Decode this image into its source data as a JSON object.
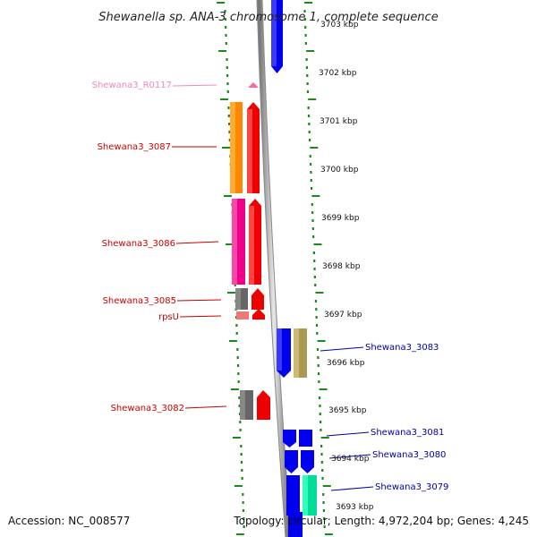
{
  "title": "Shewanella sp. ANA-3 chromosome 1, complete sequence",
  "footer": {
    "accession": "Accession: NC_008577",
    "summary": "Topology: circular; Length: 4,972,204 bp; Genes: 4,245"
  },
  "scale": {
    "top_partial": "3703 kbp",
    "ticks": [
      "3702 kbp",
      "3701 kbp",
      "3700 kbp",
      "3699 kbp",
      "3698 kbp",
      "3697 kbp",
      "3696 kbp",
      "3695 kbp",
      "3694 kbp",
      "3693 kbp"
    ]
  },
  "genes": {
    "r0117": "Shewana3_R0117",
    "g3087": "Shewana3_3087",
    "g3086": "Shewana3_3086",
    "g3085": "Shewana3_3085",
    "rpsu": "rpsU",
    "g3083": "Shewana3_3083",
    "g3082": "Shewana3_3082",
    "g3081": "Shewana3_3081",
    "g3080": "Shewana3_3080",
    "g3079": "Shewana3_3079"
  },
  "colors": {
    "reverse_strand_label": "#cc0000",
    "forward_strand_label": "#0000aa",
    "rna_label": "#ee88bb",
    "ruler_dash": "#1a8a1a",
    "backbone": "#999999"
  }
}
